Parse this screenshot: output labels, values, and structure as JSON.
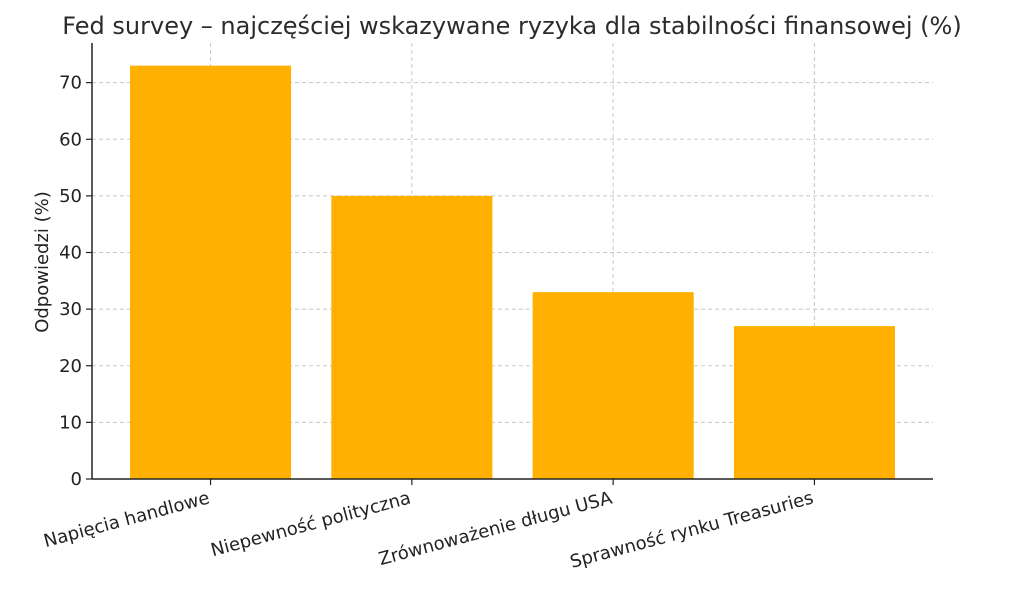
{
  "chart_data": {
    "type": "bar",
    "title": "Fed survey – najczęściej wskazywane ryzyka dla stabilności finansowej (%)",
    "xlabel": "",
    "ylabel": "Odpowiedzi (%)",
    "categories": [
      "Napięcia handlowe",
      "Niepewność polityczna",
      "Zrównoważenie długu USA",
      "Sprawność rynku Treasuries"
    ],
    "values": [
      73,
      50,
      33,
      27
    ],
    "ylim": [
      0,
      77
    ],
    "yticks": [
      "0",
      "10",
      "20",
      "30",
      "40",
      "50",
      "60",
      "70"
    ],
    "grid": true,
    "bar_color": "#FFB000"
  }
}
